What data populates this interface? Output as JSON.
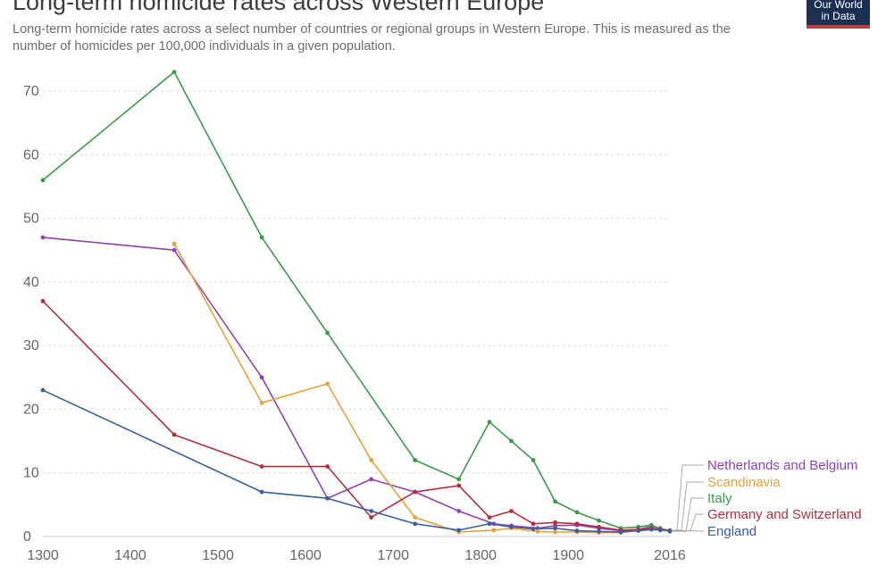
{
  "header": {
    "title": "Long-term homicide rates across Western Europe",
    "subtitle": "Long-term homicide rates across a select number of countries or regional groups in Western Europe. This is measured as the number of homicides per 100,000 individuals in a given population.",
    "logo_line1": "Our World",
    "logo_line2": "in Data"
  },
  "chart_data": {
    "type": "line",
    "title": "Long-term homicide rates across Western Europe",
    "xlabel": "",
    "ylabel": "",
    "xlim": [
      1300,
      2016
    ],
    "ylim": [
      0,
      75
    ],
    "x_ticks": [
      "1300",
      "1400",
      "1500",
      "1600",
      "1700",
      "1800",
      "1900",
      "2016"
    ],
    "y_ticks": [
      "0",
      "10",
      "20",
      "30",
      "40",
      "50",
      "60",
      "70"
    ],
    "grid": "horizontal dashed",
    "legend": "right, labels at line ends",
    "series": [
      {
        "name": "Netherlands and Belgium",
        "color": "#9241b5",
        "points": [
          [
            1300,
            47
          ],
          [
            1450,
            45
          ],
          [
            1550,
            25
          ],
          [
            1625,
            6
          ],
          [
            1675,
            9
          ],
          [
            1725,
            7
          ],
          [
            1775,
            4
          ],
          [
            1815,
            2
          ],
          [
            1835,
            1.7
          ],
          [
            1865,
            1.3
          ],
          [
            1885,
            1.7
          ],
          [
            1910,
            1.8
          ],
          [
            1935,
            1.3
          ],
          [
            1960,
            0.9
          ],
          [
            1980,
            1.1
          ],
          [
            1995,
            1.6
          ],
          [
            2005,
            1.3
          ],
          [
            2016,
            0.9
          ]
        ]
      },
      {
        "name": "Scandinavia",
        "color": "#e8a13a",
        "points": [
          [
            1450,
            46
          ],
          [
            1550,
            21
          ],
          [
            1625,
            24
          ],
          [
            1675,
            12
          ],
          [
            1725,
            3
          ],
          [
            1775,
            0.7
          ],
          [
            1815,
            1
          ],
          [
            1835,
            1.3
          ],
          [
            1865,
            0.8
          ],
          [
            1885,
            0.7
          ],
          [
            1910,
            0.7
          ],
          [
            1935,
            0.6
          ],
          [
            1960,
            0.6
          ],
          [
            1980,
            1
          ],
          [
            1995,
            1.4
          ],
          [
            2005,
            1.2
          ],
          [
            2016,
            1
          ]
        ]
      },
      {
        "name": "Italy",
        "color": "#3b9b47",
        "points": [
          [
            1300,
            56
          ],
          [
            1450,
            73
          ],
          [
            1550,
            47
          ],
          [
            1625,
            32
          ],
          [
            1725,
            12
          ],
          [
            1775,
            9
          ],
          [
            1810,
            18
          ],
          [
            1835,
            15
          ],
          [
            1860,
            12
          ],
          [
            1885,
            5.5
          ],
          [
            1910,
            3.8
          ],
          [
            1935,
            2.5
          ],
          [
            1960,
            1.3
          ],
          [
            1980,
            1.5
          ],
          [
            1995,
            1.8
          ],
          [
            2005,
            1.2
          ],
          [
            2016,
            0.8
          ]
        ]
      },
      {
        "name": "Germany and Switzerland",
        "color": "#b32f3e",
        "points": [
          [
            1300,
            37
          ],
          [
            1450,
            16
          ],
          [
            1550,
            11
          ],
          [
            1625,
            11
          ],
          [
            1675,
            3
          ],
          [
            1725,
            7
          ],
          [
            1775,
            8
          ],
          [
            1810,
            3
          ],
          [
            1835,
            4
          ],
          [
            1860,
            2
          ],
          [
            1885,
            2.2
          ],
          [
            1910,
            2
          ],
          [
            1935,
            1.5
          ],
          [
            1960,
            1
          ],
          [
            1980,
            1.1
          ],
          [
            1995,
            1.3
          ],
          [
            2005,
            1.1
          ],
          [
            2016,
            0.9
          ]
        ]
      },
      {
        "name": "England",
        "color": "#3a5e9e",
        "points": [
          [
            1300,
            23
          ],
          [
            1550,
            7
          ],
          [
            1625,
            6
          ],
          [
            1675,
            4
          ],
          [
            1725,
            2
          ],
          [
            1775,
            1
          ],
          [
            1810,
            2
          ],
          [
            1835,
            1.5
          ],
          [
            1860,
            1.2
          ],
          [
            1885,
            1.3
          ],
          [
            1910,
            0.9
          ],
          [
            1935,
            0.8
          ],
          [
            1960,
            0.7
          ],
          [
            1980,
            0.9
          ],
          [
            1995,
            1.1
          ],
          [
            2005,
            1
          ],
          [
            2016,
            0.9
          ]
        ]
      }
    ]
  }
}
